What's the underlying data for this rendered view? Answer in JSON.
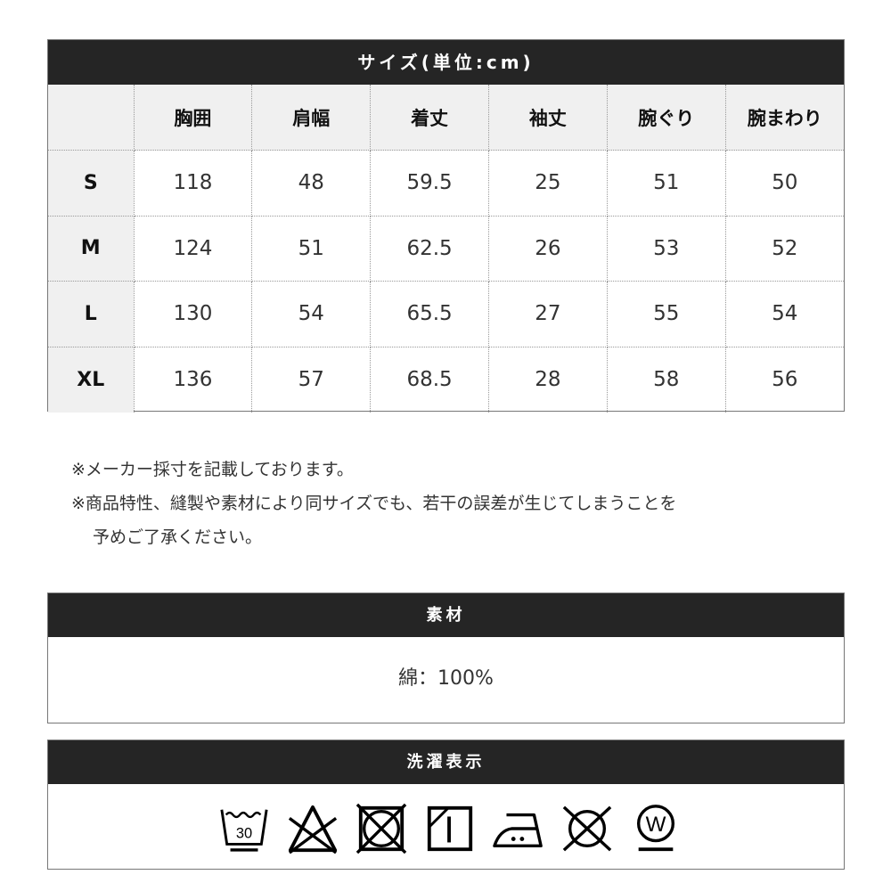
{
  "size_table": {
    "title": "サイズ(単位:cm)",
    "headers": [
      "",
      "胸囲",
      "肩幅",
      "着丈",
      "袖丈",
      "腕ぐり",
      "腕まわり"
    ],
    "rows": [
      [
        "S",
        "118",
        "48",
        "59.5",
        "25",
        "51",
        "50"
      ],
      [
        "M",
        "124",
        "51",
        "62.5",
        "26",
        "53",
        "52"
      ],
      [
        "L",
        "130",
        "54",
        "65.5",
        "27",
        "55",
        "54"
      ],
      [
        "XL",
        "136",
        "57",
        "68.5",
        "28",
        "58",
        "56"
      ]
    ]
  },
  "notes": [
    "※メーカー採寸を記載しております。",
    "※商品特性、縫製や素材により同サイズでも、若干の誤差が生じてしまうことを",
    "予めご了承ください。"
  ],
  "material": {
    "title": "素材",
    "value": "綿：100%"
  },
  "care": {
    "title": "洗濯表示",
    "wash_temp": "30",
    "wet_clean_letter": "W",
    "icons": [
      "wash-30-icon",
      "no-bleach-icon",
      "no-tumble-dry-icon",
      "line-dry-shade-icon",
      "iron-medium-icon",
      "no-dry-clean-icon",
      "wet-clean-icon"
    ]
  }
}
